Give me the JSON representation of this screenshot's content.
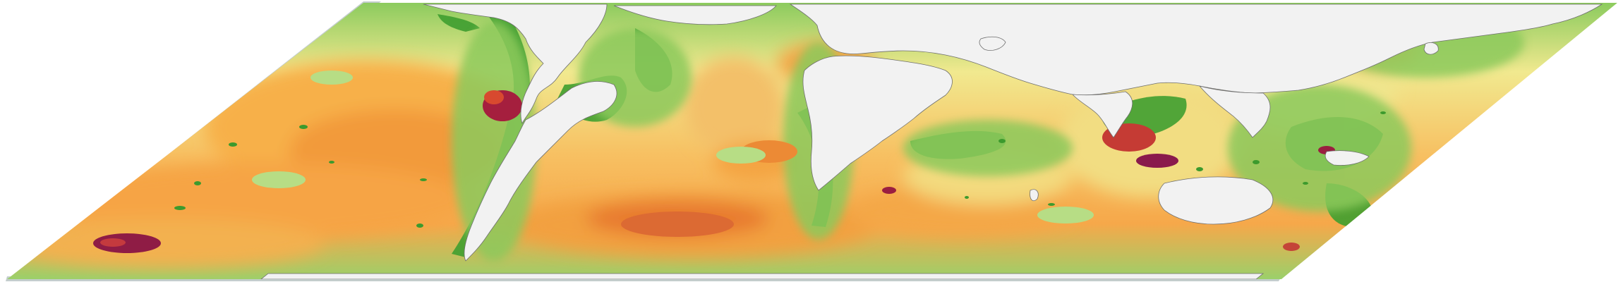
{
  "map": {
    "projection": "skewed-equirectangular-perspective",
    "land_color": "#f2f2f2",
    "frame_edge_color": "#c3cdcc",
    "coast_stroke_color": "#6f6f6f",
    "legend_visible": false,
    "color_scale": {
      "low": "#2f9a2a",
      "mid_low": "#8bc85a",
      "mid": "#f3eb92",
      "mid_high": "#f6a33a",
      "high": "#e06a2c",
      "peak": "#9c2040"
    }
  }
}
